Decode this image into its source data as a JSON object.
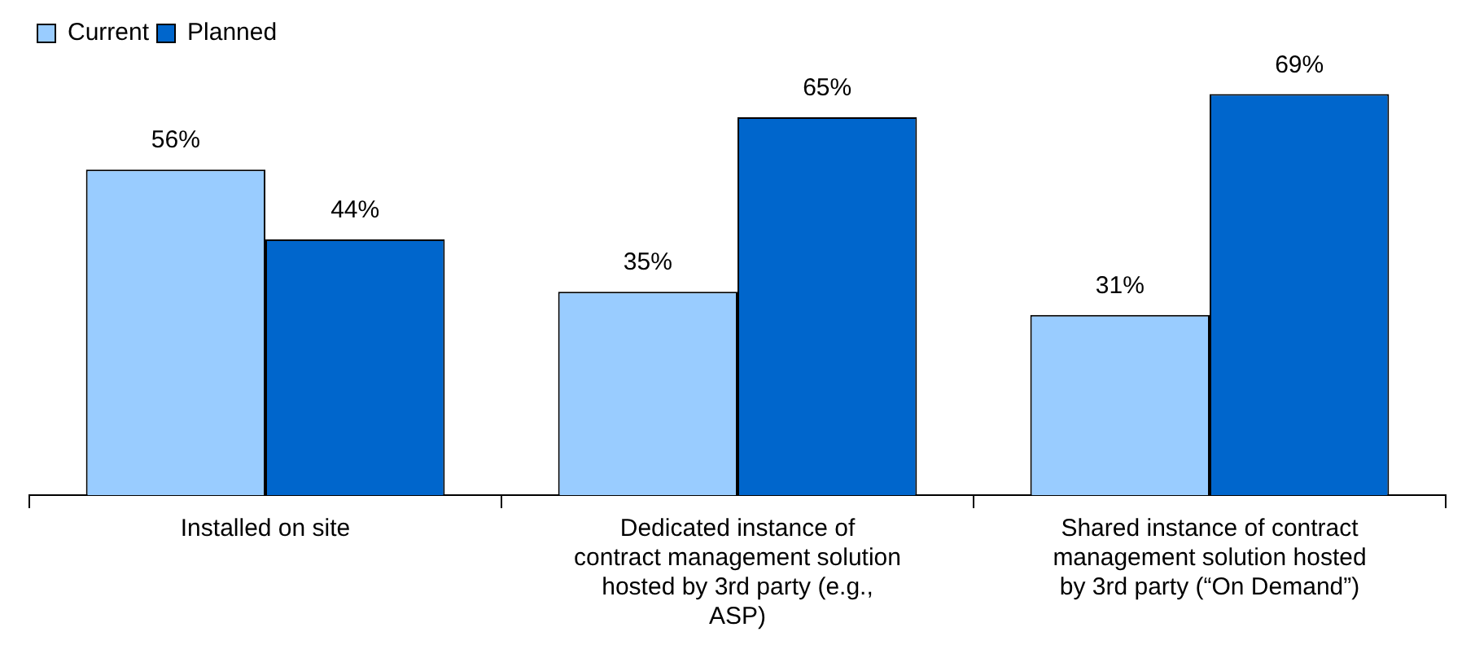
{
  "chart_data": {
    "type": "bar",
    "categories": [
      "Installed on site",
      "Dedicated instance of contract management solution hosted by 3rd party (e.g., ASP)",
      "Shared instance of contract management solution hosted by 3rd party (“On Demand”)"
    ],
    "series": [
      {
        "name": "Current",
        "color": "#99ccff",
        "values": [
          56,
          35,
          31
        ],
        "value_labels": [
          "56%",
          "35%",
          "31%"
        ]
      },
      {
        "name": "Planned",
        "color": "#0066cc",
        "values": [
          44,
          65,
          69
        ],
        "value_labels": [
          "44%",
          "65%",
          "69%"
        ]
      }
    ],
    "legend": "top left",
    "grid": false
  }
}
